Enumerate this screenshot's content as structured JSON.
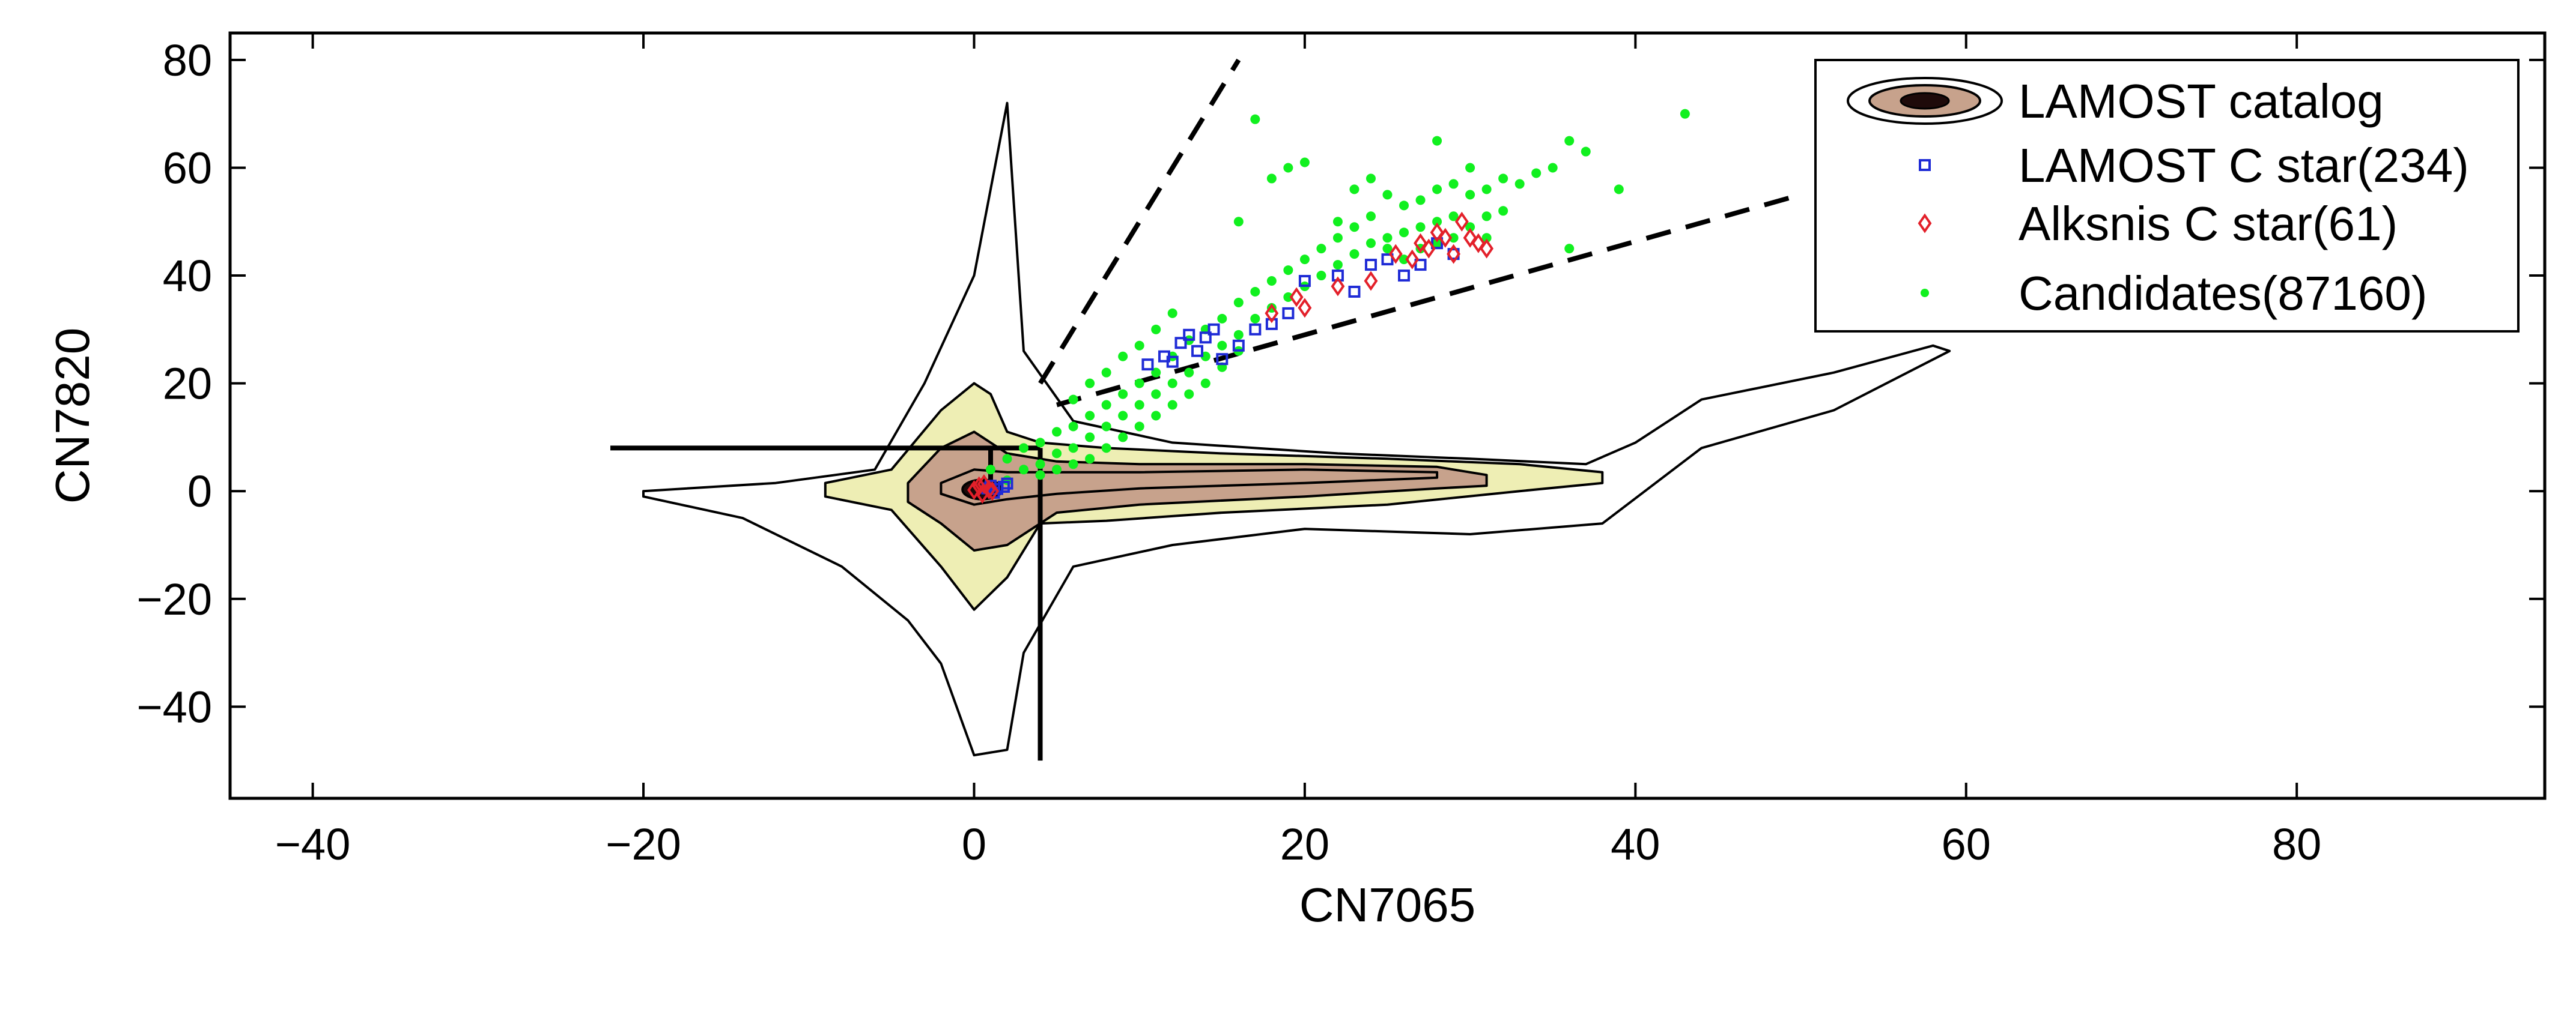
{
  "chart_data": {
    "type": "scatter",
    "title": "",
    "xlabel": "CN7065",
    "ylabel": "CN7820",
    "xlim": [
      -45,
      95
    ],
    "ylim": [
      -57,
      85
    ],
    "x_ticks": [
      -40,
      -20,
      0,
      20,
      40,
      60,
      80
    ],
    "x_tick_labels": [
      "−40",
      "−20",
      "0",
      "20",
      "40",
      "60",
      "80"
    ],
    "y_ticks": [
      -40,
      -20,
      0,
      20,
      40,
      60,
      80
    ],
    "y_tick_labels": [
      "−40",
      "−20",
      "0",
      "20",
      "40",
      "60",
      "80"
    ],
    "grid": false,
    "legend_position": "top-right",
    "colors": {
      "contour_line": "#000000",
      "contour_fill_outer": "#eeeeb4",
      "contour_fill_mid": "#c7a28c",
      "contour_fill_core": "#1e0a0a",
      "lamost_c_star": "#1f2bd6",
      "alksnis_c_star": "#e3202a",
      "candidates": "#11f01f",
      "selection_lines": "#000000"
    },
    "series": [
      {
        "name": "LAMOST catalog",
        "kind": "density-contours",
        "levels": [
          {
            "level": "outermost",
            "fill": "none",
            "x": [
              -20,
              -12,
              -6,
              -3,
              0,
              2,
              3,
              6,
              12,
              22,
              30,
              37,
              40,
              44,
              52,
              58,
              59,
              52,
              44,
              38,
              30,
              20,
              12,
              6,
              3,
              2,
              0,
              -2,
              -4,
              -8,
              -14,
              -20
            ],
            "y": [
              0,
              1.5,
              4,
              20,
              40,
              72,
              26,
              13,
              9,
              7,
              6,
              5,
              9,
              17,
              22,
              27,
              26,
              15,
              8,
              -6,
              -8,
              -7,
              -10,
              -14,
              -30,
              -48,
              -49,
              -32,
              -24,
              -14,
              -5,
              -1
            ]
          },
          {
            "level": "outer",
            "fill": "contour_fill_outer",
            "x": [
              -9,
              -5,
              -2,
              0,
              1,
              2,
              4,
              8,
              15,
              25,
              33,
              38,
              38,
              33,
              25,
              15,
              8,
              4,
              2,
              0,
              -2,
              -5,
              -9
            ],
            "y": [
              1.5,
              4,
              15,
              20,
              18,
              11,
              9,
              8,
              7,
              6,
              5,
              3.5,
              1.5,
              0,
              -2.5,
              -4,
              -5.5,
              -6,
              -16,
              -22,
              -14,
              -3.5,
              -1
            ]
          },
          {
            "level": "mid",
            "fill": "contour_fill_mid",
            "x": [
              -4,
              -2,
              0,
              2,
              5,
              10,
              20,
              28,
              31,
              31,
              28,
              20,
              10,
              5,
              2,
              0,
              -2,
              -4
            ],
            "y": [
              1.5,
              8,
              11,
              7,
              5.5,
              5,
              5,
              4.5,
              3,
              1,
              0.5,
              -1,
              -2.5,
              -4,
              -10,
              -11,
              -6,
              -2
            ]
          },
          {
            "level": "inner",
            "fill": "contour_fill_mid",
            "x": [
              -2,
              0,
              2,
              5,
              10,
              20,
              28,
              28,
              20,
              10,
              5,
              2,
              0,
              -2
            ],
            "y": [
              1.5,
              4,
              3.5,
              3.5,
              3.5,
              4,
              3.5,
              2.5,
              1.5,
              0.5,
              -0.5,
              -1.5,
              -2.5,
              -0.5
            ]
          },
          {
            "level": "core",
            "fill": "contour_fill_core",
            "cx": 0.5,
            "cy": 0.3,
            "rx": 1.2,
            "ry": 1.8
          }
        ]
      },
      {
        "name": "LAMOST C star(234)",
        "kind": "open-square",
        "points": [
          [
            0.8,
            0.5
          ],
          [
            1.0,
            1.0
          ],
          [
            1.4,
            0.4
          ],
          [
            1.8,
            0.8
          ],
          [
            1.2,
            -0.3
          ],
          [
            2.0,
            1.4
          ],
          [
            10.5,
            23.5
          ],
          [
            11.5,
            25
          ],
          [
            12,
            24
          ],
          [
            12.5,
            27.5
          ],
          [
            13,
            29
          ],
          [
            13.5,
            26
          ],
          [
            14,
            28.5
          ],
          [
            14.5,
            30
          ],
          [
            15,
            24.5
          ],
          [
            16,
            27
          ],
          [
            17,
            30
          ],
          [
            18,
            31
          ],
          [
            19,
            33
          ],
          [
            20,
            39
          ],
          [
            22,
            40
          ],
          [
            23,
            37
          ],
          [
            24,
            42
          ],
          [
            25,
            43
          ],
          [
            26,
            40
          ],
          [
            27,
            42
          ],
          [
            28,
            46
          ],
          [
            29,
            44
          ]
        ]
      },
      {
        "name": "Alksnis C star(61)",
        "kind": "open-diamond",
        "points": [
          [
            0.0,
            0.2
          ],
          [
            0.3,
            0.9
          ],
          [
            0.5,
            -0.5
          ],
          [
            0.6,
            1.3
          ],
          [
            0.9,
            0.3
          ],
          [
            1.1,
            0.0
          ],
          [
            18,
            33
          ],
          [
            19.5,
            36
          ],
          [
            20,
            34
          ],
          [
            22,
            38
          ],
          [
            24,
            39
          ],
          [
            25.5,
            44
          ],
          [
            26.5,
            43
          ],
          [
            27,
            46
          ],
          [
            27.5,
            45
          ],
          [
            28,
            48
          ],
          [
            28.5,
            47
          ],
          [
            29,
            44
          ],
          [
            30,
            47
          ],
          [
            30.5,
            46
          ],
          [
            31,
            45
          ],
          [
            29.5,
            50
          ]
        ]
      },
      {
        "name": "Candidates(87160)",
        "kind": "dot",
        "points": [
          [
            1,
            4
          ],
          [
            2,
            6
          ],
          [
            2,
            2
          ],
          [
            3,
            8
          ],
          [
            3,
            4
          ],
          [
            4,
            9
          ],
          [
            4,
            5
          ],
          [
            4,
            3
          ],
          [
            5,
            11
          ],
          [
            5,
            7
          ],
          [
            5,
            4
          ],
          [
            6,
            12
          ],
          [
            6,
            8
          ],
          [
            6,
            5
          ],
          [
            6,
            17
          ],
          [
            7,
            14
          ],
          [
            7,
            10
          ],
          [
            7,
            6
          ],
          [
            7,
            20
          ],
          [
            8,
            16
          ],
          [
            8,
            12
          ],
          [
            8,
            8
          ],
          [
            8,
            22
          ],
          [
            9,
            18
          ],
          [
            9,
            14
          ],
          [
            9,
            10
          ],
          [
            9,
            25
          ],
          [
            10,
            20
          ],
          [
            10,
            16
          ],
          [
            10,
            12
          ],
          [
            10,
            27
          ],
          [
            11,
            22
          ],
          [
            11,
            18
          ],
          [
            11,
            14
          ],
          [
            11,
            30
          ],
          [
            12,
            25
          ],
          [
            12,
            20
          ],
          [
            12,
            16
          ],
          [
            12,
            33
          ],
          [
            13,
            28
          ],
          [
            13,
            22
          ],
          [
            13,
            18
          ],
          [
            14,
            30
          ],
          [
            14,
            25
          ],
          [
            14,
            20
          ],
          [
            15,
            32
          ],
          [
            15,
            27
          ],
          [
            15,
            23
          ],
          [
            16,
            35
          ],
          [
            16,
            50
          ],
          [
            16,
            29
          ],
          [
            16,
            26
          ],
          [
            17,
            69
          ],
          [
            17,
            37
          ],
          [
            17,
            32
          ],
          [
            18,
            39
          ],
          [
            18,
            34
          ],
          [
            18,
            58
          ],
          [
            19,
            41
          ],
          [
            19,
            36
          ],
          [
            19,
            60
          ],
          [
            20,
            61
          ],
          [
            20,
            43
          ],
          [
            20,
            38
          ],
          [
            21,
            45
          ],
          [
            21,
            40
          ],
          [
            22,
            47
          ],
          [
            22,
            42
          ],
          [
            22,
            50
          ],
          [
            23,
            49
          ],
          [
            23,
            44
          ],
          [
            23,
            56
          ],
          [
            24,
            51
          ],
          [
            24,
            46
          ],
          [
            24,
            58
          ],
          [
            25,
            55
          ],
          [
            25,
            47
          ],
          [
            25,
            45
          ],
          [
            26,
            53
          ],
          [
            26,
            48
          ],
          [
            26,
            43
          ],
          [
            27,
            54
          ],
          [
            27,
            49
          ],
          [
            27,
            45
          ],
          [
            28,
            56
          ],
          [
            28,
            50
          ],
          [
            28,
            46
          ],
          [
            28,
            65
          ],
          [
            29,
            57
          ],
          [
            29,
            51
          ],
          [
            29,
            47
          ],
          [
            30,
            55
          ],
          [
            30,
            49
          ],
          [
            30,
            60
          ],
          [
            31,
            56
          ],
          [
            31,
            51
          ],
          [
            31,
            47
          ],
          [
            32,
            52
          ],
          [
            32,
            58
          ],
          [
            33,
            57
          ],
          [
            34,
            59
          ],
          [
            35,
            60
          ],
          [
            36,
            65
          ],
          [
            36,
            45
          ],
          [
            37,
            63
          ],
          [
            39,
            56
          ],
          [
            43,
            70
          ]
        ]
      }
    ],
    "selection_lines": [
      {
        "style": "solid",
        "x": [
          -22,
          4
        ],
        "y": [
          8,
          8
        ]
      },
      {
        "style": "solid",
        "x": [
          4,
          4
        ],
        "y": [
          8,
          -50
        ]
      },
      {
        "style": "solid",
        "x": [
          1,
          1
        ],
        "y": [
          8,
          2
        ]
      },
      {
        "style": "dashed",
        "x": [
          4,
          16
        ],
        "y": [
          20,
          80
        ]
      },
      {
        "style": "dashed",
        "x": [
          5,
          50
        ],
        "y": [
          16,
          55
        ]
      }
    ],
    "legend": {
      "entries": [
        {
          "label": "LAMOST catalog",
          "symbol": "contour"
        },
        {
          "label": "LAMOST C star(234)",
          "symbol": "open-square"
        },
        {
          "label": "Alksnis C star(61)",
          "symbol": "open-diamond"
        },
        {
          "label": "Candidates(87160)",
          "symbol": "dot"
        }
      ]
    }
  }
}
